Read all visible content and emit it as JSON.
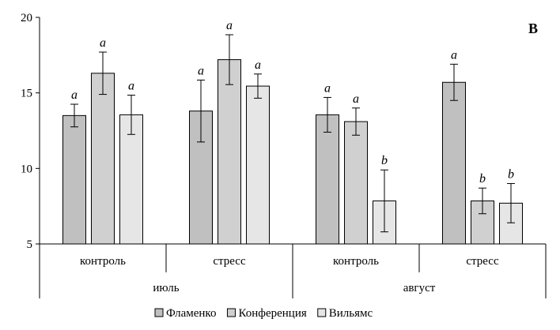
{
  "chart_data": {
    "type": "bar",
    "panel_label": "B",
    "ylim": [
      5,
      20
    ],
    "yticks": [
      "5",
      "10",
      "15",
      "20"
    ],
    "months": [
      {
        "label": "июль",
        "groups": [
          {
            "label": "контроль",
            "values": [
              13.5,
              16.3,
              13.55
            ],
            "errors": [
              0.75,
              1.4,
              1.3
            ],
            "letters": [
              "a",
              "a",
              "a"
            ]
          },
          {
            "label": "стресс",
            "values": [
              13.8,
              17.2,
              15.45
            ],
            "errors": [
              2.05,
              1.65,
              0.8
            ],
            "letters": [
              "a",
              "a",
              "a"
            ]
          }
        ]
      },
      {
        "label": "август",
        "groups": [
          {
            "label": "контроль",
            "values": [
              13.55,
              13.1,
              7.85
            ],
            "errors": [
              1.15,
              0.9,
              2.05
            ],
            "letters": [
              "a",
              "a",
              "b"
            ]
          },
          {
            "label": "стресс",
            "values": [
              15.7,
              7.85,
              7.7
            ],
            "errors": [
              1.2,
              0.85,
              1.3
            ],
            "letters": [
              "a",
              "b",
              "b"
            ]
          }
        ]
      }
    ],
    "series": [
      {
        "name": "Фламенко",
        "color": "#c0c0c0"
      },
      {
        "name": "Конференция",
        "color": "#d0d0d0"
      },
      {
        "name": "Вильямс",
        "color": "#e6e6e6"
      }
    ]
  }
}
